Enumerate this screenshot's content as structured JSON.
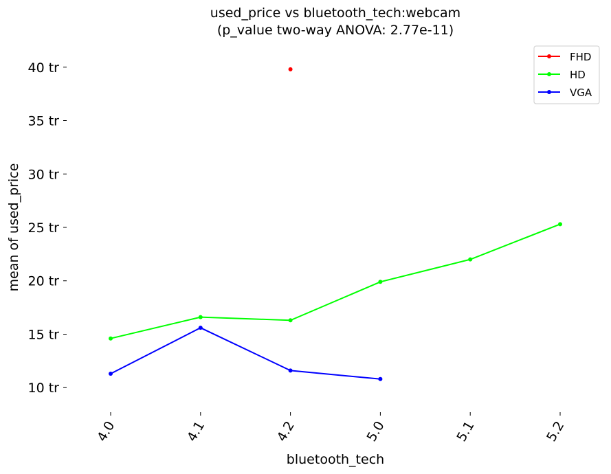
{
  "chart_data": {
    "type": "line",
    "title": "used_price vs bluetooth_tech:webcam",
    "subtitle": "(p_value two-way ANOVA: 2.77e-11)",
    "xlabel": "bluetooth_tech",
    "ylabel": "mean of used_price",
    "categories": [
      "4.0",
      "4.1",
      "4.2",
      "5.0",
      "5.1",
      "5.2"
    ],
    "yticks": [
      {
        "value": 10,
        "label": "10 tr"
      },
      {
        "value": 15,
        "label": "15 tr"
      },
      {
        "value": 20,
        "label": "20 tr"
      },
      {
        "value": 25,
        "label": "25 tr"
      },
      {
        "value": 30,
        "label": "30 tr"
      },
      {
        "value": 35,
        "label": "35 tr"
      },
      {
        "value": 40,
        "label": "40 tr"
      }
    ],
    "ylim": [
      7.7,
      42.3
    ],
    "grid": false,
    "legend_position": "top-right",
    "series": [
      {
        "name": "FHD",
        "color": "#ff0000",
        "values": [
          null,
          null,
          39.8,
          null,
          null,
          null
        ]
      },
      {
        "name": "HD",
        "color": "#00ff00",
        "values": [
          14.6,
          16.6,
          16.3,
          19.9,
          22.0,
          25.3
        ]
      },
      {
        "name": "VGA",
        "color": "#0000ff",
        "values": [
          11.3,
          15.6,
          11.6,
          10.8,
          null,
          null
        ]
      }
    ]
  }
}
